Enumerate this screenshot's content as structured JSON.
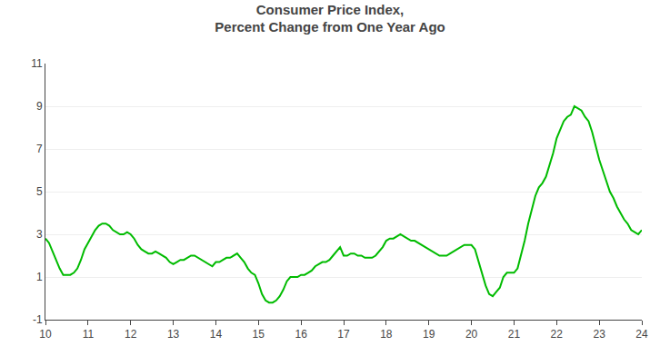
{
  "chart_data": {
    "type": "line",
    "title": "Consumer Price Index,\nPercent Change from One Year Ago",
    "color": "#00bb00",
    "grid": true,
    "xlim": [
      10,
      24
    ],
    "ylim": [
      -1,
      11
    ],
    "xticks": [
      10,
      11,
      12,
      13,
      14,
      15,
      16,
      17,
      18,
      19,
      20,
      21,
      22,
      23,
      24
    ],
    "yticks": [
      -1,
      1,
      3,
      5,
      7,
      9,
      11
    ],
    "x": [
      10.0,
      10.083,
      10.167,
      10.25,
      10.333,
      10.417,
      10.5,
      10.583,
      10.667,
      10.75,
      10.833,
      10.917,
      11.0,
      11.083,
      11.167,
      11.25,
      11.333,
      11.417,
      11.5,
      11.583,
      11.667,
      11.75,
      11.833,
      11.917,
      12.0,
      12.083,
      12.167,
      12.25,
      12.333,
      12.417,
      12.5,
      12.583,
      12.667,
      12.75,
      12.833,
      12.917,
      13.0,
      13.083,
      13.167,
      13.25,
      13.333,
      13.417,
      13.5,
      13.583,
      13.667,
      13.75,
      13.833,
      13.917,
      14.0,
      14.083,
      14.167,
      14.25,
      14.333,
      14.417,
      14.5,
      14.583,
      14.667,
      14.75,
      14.833,
      14.917,
      15.0,
      15.083,
      15.167,
      15.25,
      15.333,
      15.417,
      15.5,
      15.583,
      15.667,
      15.75,
      15.833,
      15.917,
      16.0,
      16.083,
      16.167,
      16.25,
      16.333,
      16.417,
      16.5,
      16.583,
      16.667,
      16.75,
      16.833,
      16.917,
      17.0,
      17.083,
      17.167,
      17.25,
      17.333,
      17.417,
      17.5,
      17.583,
      17.667,
      17.75,
      17.833,
      17.917,
      18.0,
      18.083,
      18.167,
      18.25,
      18.333,
      18.417,
      18.5,
      18.583,
      18.667,
      18.75,
      18.833,
      18.917,
      19.0,
      19.083,
      19.167,
      19.25,
      19.333,
      19.417,
      19.5,
      19.583,
      19.667,
      19.75,
      19.833,
      19.917,
      20.0,
      20.083,
      20.167,
      20.25,
      20.333,
      20.417,
      20.5,
      20.583,
      20.667,
      20.75,
      20.833,
      20.917,
      21.0,
      21.083,
      21.167,
      21.25,
      21.333,
      21.417,
      21.5,
      21.583,
      21.667,
      21.75,
      21.833,
      21.917,
      22.0,
      22.083,
      22.167,
      22.25,
      22.333,
      22.417,
      22.5,
      22.583,
      22.667,
      22.75,
      22.833,
      22.917,
      23.0,
      23.083,
      23.167,
      23.25,
      23.333,
      23.417,
      23.5,
      23.583,
      23.667,
      23.75,
      23.833,
      23.917,
      24.0
    ],
    "values": [
      2.8,
      2.6,
      2.2,
      1.8,
      1.4,
      1.1,
      1.1,
      1.1,
      1.2,
      1.4,
      1.8,
      2.3,
      2.6,
      2.9,
      3.2,
      3.4,
      3.5,
      3.5,
      3.4,
      3.2,
      3.1,
      3.0,
      3.0,
      3.1,
      3.0,
      2.8,
      2.5,
      2.3,
      2.2,
      2.1,
      2.1,
      2.2,
      2.1,
      2.0,
      1.9,
      1.7,
      1.6,
      1.7,
      1.8,
      1.8,
      1.9,
      2.0,
      2.0,
      1.9,
      1.8,
      1.7,
      1.6,
      1.5,
      1.7,
      1.7,
      1.8,
      1.9,
      1.9,
      2.0,
      2.1,
      1.9,
      1.7,
      1.4,
      1.2,
      1.1,
      0.7,
      0.2,
      -0.1,
      -0.2,
      -0.2,
      -0.1,
      0.1,
      0.4,
      0.8,
      1.0,
      1.0,
      1.0,
      1.1,
      1.1,
      1.2,
      1.3,
      1.5,
      1.6,
      1.7,
      1.7,
      1.8,
      2.0,
      2.2,
      2.4,
      2.0,
      2.0,
      2.1,
      2.1,
      2.0,
      2.0,
      1.9,
      1.9,
      1.9,
      2.0,
      2.2,
      2.4,
      2.7,
      2.8,
      2.8,
      2.9,
      3.0,
      2.9,
      2.8,
      2.7,
      2.7,
      2.6,
      2.5,
      2.4,
      2.3,
      2.2,
      2.1,
      2.0,
      2.0,
      2.0,
      2.1,
      2.2,
      2.3,
      2.4,
      2.5,
      2.5,
      2.5,
      2.3,
      1.7,
      1.2,
      0.6,
      0.2,
      0.1,
      0.3,
      0.5,
      1.0,
      1.2,
      1.2,
      1.2,
      1.4,
      2.0,
      2.7,
      3.5,
      4.2,
      4.8,
      5.2,
      5.4,
      5.7,
      6.2,
      6.8,
      7.5,
      7.9,
      8.3,
      8.5,
      8.6,
      9.0,
      8.9,
      8.8,
      8.5,
      8.3,
      7.8,
      7.1,
      6.5,
      6.0,
      5.5,
      5.0,
      4.7,
      4.3,
      4.0,
      3.7,
      3.5,
      3.2,
      3.1,
      3.0,
      3.2
    ]
  }
}
